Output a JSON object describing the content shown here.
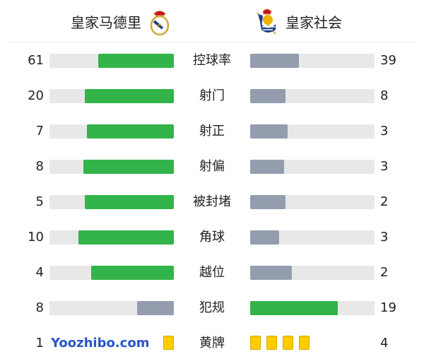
{
  "header": {
    "home_team": "皇家马德里",
    "away_team": "皇家社会",
    "home_crest_icon": "real-madrid-crest",
    "away_crest_icon": "real-sociedad-crest"
  },
  "colors": {
    "leader": "#32b44a",
    "trailer": "#939dad",
    "track": "#e8e8e8",
    "card": "#ffcc00"
  },
  "stats": [
    {
      "label": "控球率",
      "home": 61,
      "away": 39
    },
    {
      "label": "射门",
      "home": 20,
      "away": 8
    },
    {
      "label": "射正",
      "home": 7,
      "away": 3
    },
    {
      "label": "射偏",
      "home": 8,
      "away": 3
    },
    {
      "label": "被封堵",
      "home": 5,
      "away": 2
    },
    {
      "label": "角球",
      "home": 10,
      "away": 3
    },
    {
      "label": "越位",
      "home": 4,
      "away": 2
    },
    {
      "label": "犯规",
      "home": 8,
      "away": 19
    }
  ],
  "yellow_cards": {
    "label": "黄牌",
    "home": 1,
    "away": 4
  },
  "watermark": "Yoozhibo.com"
}
